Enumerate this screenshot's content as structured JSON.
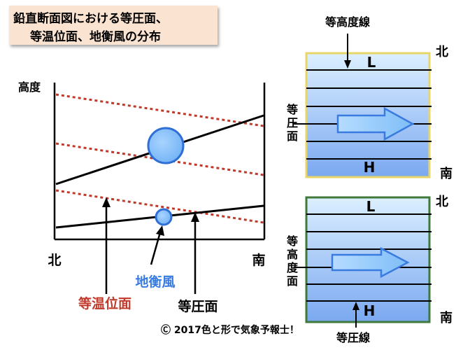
{
  "title": {
    "line1": "鉛直断面図における等圧面、",
    "line2": "等温位面、地衡風の分布"
  },
  "left_panel": {
    "y_axis_label": "高度",
    "x_left_label": "北",
    "x_right_label": "南",
    "geostrophic_wind_label": "地衡風",
    "isentrope_label": "等温位面",
    "isobar_label": "等圧面"
  },
  "right_top_panel": {
    "contour_label": "等高度線",
    "side_label": [
      "等",
      "圧",
      "面"
    ],
    "north_label": "北",
    "south_label": "南",
    "low_label": "L",
    "high_label": "H"
  },
  "right_bottom_panel": {
    "contour_label": "等圧線",
    "side_label": [
      "等",
      "高",
      "度",
      "面"
    ],
    "north_label": "北",
    "south_label": "南",
    "low_label": "L",
    "high_label": "H"
  },
  "footer": "Ⓒ 2017色と形で気象予報士！",
  "colors": {
    "title_bg": "#fbe3d2",
    "isentrope": "#c0392b",
    "wind": "#3a7be0",
    "wind_fill": "#7fbdf7",
    "top_panel_border": "#e8d56a",
    "bottom_panel_border": "#3f7a3b"
  }
}
